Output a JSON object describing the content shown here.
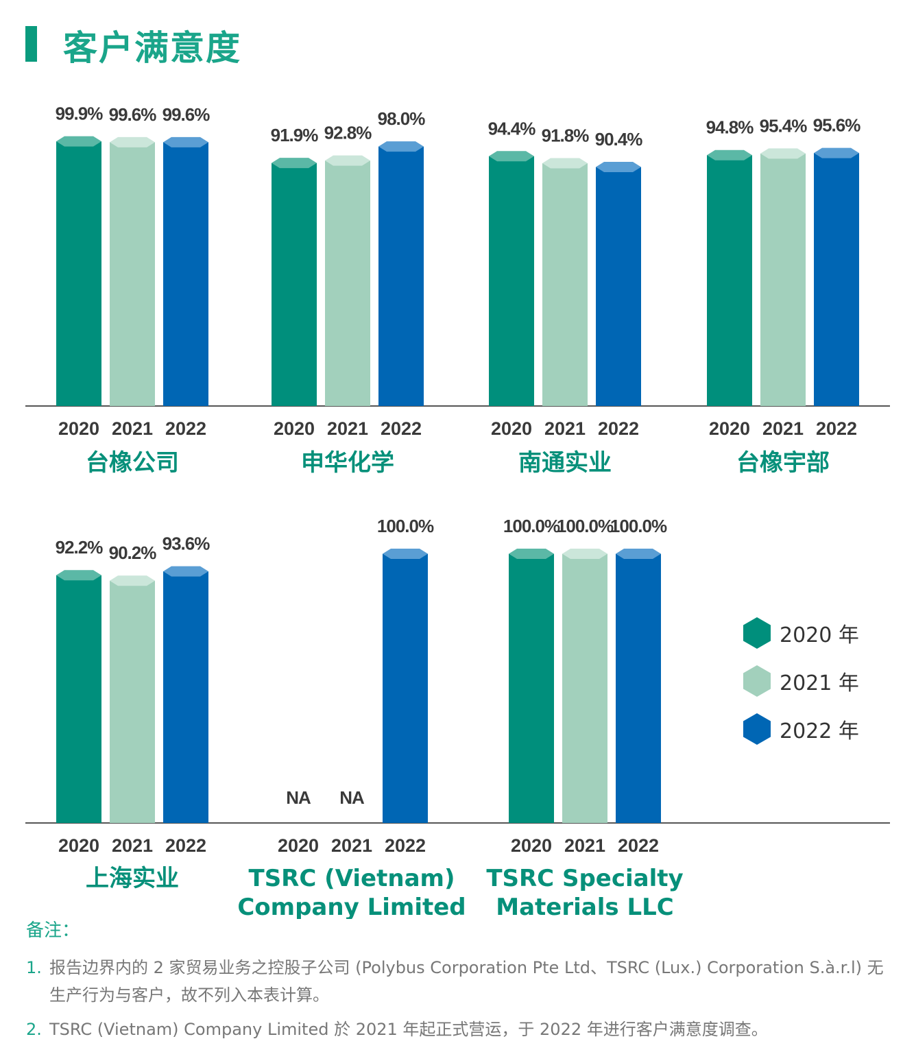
{
  "page_title": "客户满意度",
  "colors": {
    "y2020": "#008f7c",
    "y2021": "#a2d0bc",
    "y2022": "#0066b4",
    "title": "#1aa58a"
  },
  "chart_data": {
    "type": "bar",
    "title": "客户满意度",
    "ylabel": "",
    "xlabel": "",
    "series_names": [
      "2020",
      "2021",
      "2022"
    ],
    "legend": {
      "position": "right",
      "entries": [
        "2020 年",
        "2021 年",
        "2022 年"
      ]
    },
    "groups": [
      {
        "category": [
          "台橡公司"
        ],
        "values": [
          99.9,
          99.6,
          99.6
        ],
        "labels": [
          "99.9%",
          "99.6%",
          "99.6%"
        ]
      },
      {
        "category": [
          "申华化学"
        ],
        "values": [
          91.9,
          92.8,
          98.0
        ],
        "labels": [
          "91.9%",
          "92.8%",
          "98.0%"
        ]
      },
      {
        "category": [
          "南通实业"
        ],
        "values": [
          94.4,
          91.8,
          90.4
        ],
        "labels": [
          "94.4%",
          "91.8%",
          "90.4%"
        ]
      },
      {
        "category": [
          "台橡宇部"
        ],
        "values": [
          94.8,
          95.4,
          95.6
        ],
        "labels": [
          "94.8%",
          "95.4%",
          "95.6%"
        ]
      },
      {
        "category": [
          "上海实业"
        ],
        "values": [
          92.2,
          90.2,
          93.6
        ],
        "labels": [
          "92.2%",
          "90.2%",
          "93.6%"
        ]
      },
      {
        "category": [
          "TSRC (Vietnam)",
          "Company Limited"
        ],
        "values": [
          null,
          null,
          100.0
        ],
        "labels": [
          "NA",
          "NA",
          "100.0%"
        ]
      },
      {
        "category": [
          "TSRC Specialty",
          "Materials LLC"
        ],
        "values": [
          100.0,
          100.0,
          100.0
        ],
        "labels": [
          "100.0%",
          "100.0%",
          "100.0%"
        ]
      }
    ]
  },
  "notes": {
    "title": "备注：",
    "items": [
      {
        "num": "1.",
        "text": "报告边界内的 2 家贸易业务之控股子公司 (Polybus Corporation Pte Ltd、TSRC (Lux.) Corporation S.à.r.l) 无生产行为与客户，故不列入本表计算。"
      },
      {
        "num": "2.",
        "text": "TSRC (Vietnam) Company Limited 於 2021 年起正式营运，于 2022 年进行客户满意度调查。"
      }
    ]
  }
}
